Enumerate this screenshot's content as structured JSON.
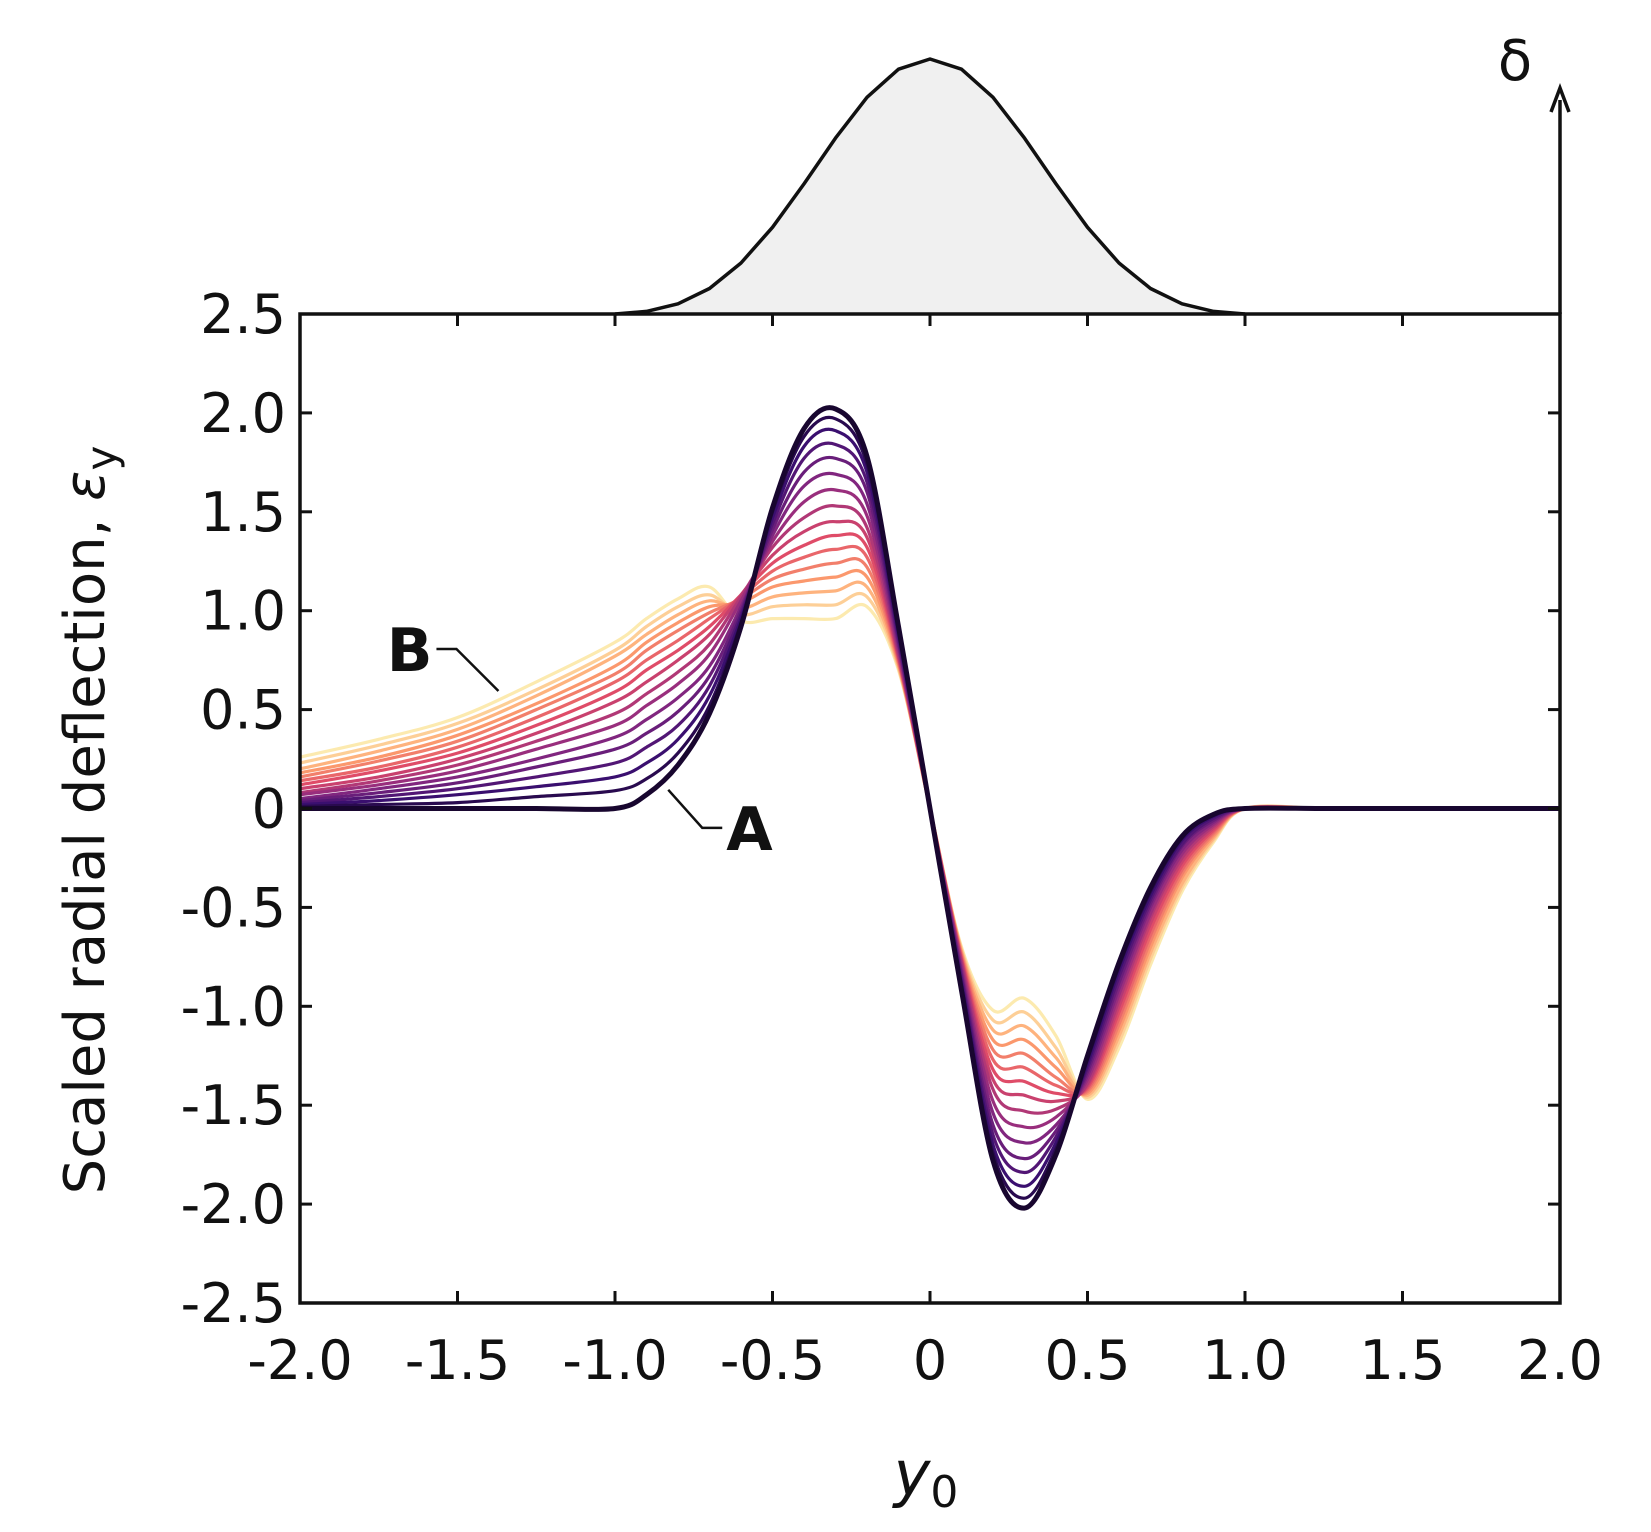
{
  "chart_data": {
    "type": "line",
    "ylabel_text": "Scaled radial deflection, ",
    "ylabel_symbol": "ε",
    "ylabel_sub": "y",
    "xlabel_symbol": "y",
    "xlabel_sub": "0",
    "inset_label": "δ",
    "xlim": [
      -2.0,
      2.0
    ],
    "ylim": [
      -2.5,
      2.5
    ],
    "x_ticks": [
      -2.0,
      -1.5,
      -1.0,
      -0.5,
      0,
      0.5,
      1.0,
      1.5,
      2.0
    ],
    "x_tick_labels": [
      "-2.0",
      "-1.5",
      "-1.0",
      "-0.5",
      "0",
      "0.5",
      "1.0",
      "1.5",
      "2.0"
    ],
    "y_ticks": [
      2.5,
      2.0,
      1.5,
      1.0,
      0.5,
      0,
      -0.5,
      -1.0,
      -1.5,
      -2.0,
      -2.5
    ],
    "y_tick_labels": [
      "2.5",
      "2.0",
      "1.5",
      "1.0",
      "0.5",
      "0",
      "-0.5",
      "-1.0",
      "-1.5",
      "-2.0",
      "-2.5"
    ],
    "annotations": [
      {
        "text": "A",
        "curve": "A",
        "at_x": -0.85
      },
      {
        "text": "B",
        "curve": "B",
        "at_x": -1.37
      }
    ],
    "grid": false,
    "legend": "none",
    "color_scale": [
      "#000004",
      "#3b0f70",
      "#8c2981",
      "#de4968",
      "#fe9f6d",
      "#fcfdbf"
    ],
    "inset_profile": {
      "x": [
        -1.0,
        -0.9,
        -0.8,
        -0.7,
        -0.6,
        -0.5,
        -0.4,
        -0.3,
        -0.2,
        -0.1,
        0.0,
        0.1,
        0.2,
        0.3,
        0.4,
        0.5,
        0.6,
        0.7,
        0.8,
        0.9,
        1.0
      ],
      "y": [
        0.0,
        0.01,
        0.04,
        0.1,
        0.2,
        0.34,
        0.51,
        0.69,
        0.85,
        0.96,
        1.0,
        0.96,
        0.85,
        0.69,
        0.51,
        0.34,
        0.2,
        0.1,
        0.04,
        0.01,
        0.0
      ]
    },
    "x": [
      -2.0,
      -1.75,
      -1.5,
      -1.25,
      -1.0,
      -0.9,
      -0.8,
      -0.7,
      -0.6,
      -0.5,
      -0.4,
      -0.3,
      -0.2,
      -0.1,
      0.0,
      0.1,
      0.2,
      0.3,
      0.4,
      0.5,
      0.6,
      0.7,
      0.8,
      0.9,
      1.0,
      1.25,
      1.5,
      1.75,
      2.0
    ],
    "series": [
      {
        "name": "A",
        "values": [
          0,
          0,
          0,
          0,
          0,
          0.07,
          0.22,
          0.48,
          0.92,
          1.52,
          1.92,
          2.02,
          1.78,
          0.92,
          0,
          -0.92,
          -1.78,
          -2.02,
          -1.75,
          -1.25,
          -0.78,
          -0.4,
          -0.14,
          -0.03,
          0,
          0,
          0,
          0,
          0
        ]
      },
      {
        "values": [
          0.01,
          0.02,
          0.03,
          0.06,
          0.09,
          0.15,
          0.28,
          0.52,
          0.94,
          1.5,
          1.88,
          1.97,
          1.74,
          0.9,
          0,
          -0.9,
          -1.74,
          -1.97,
          -1.72,
          -1.27,
          -0.8,
          -0.42,
          -0.15,
          -0.03,
          0,
          0,
          0,
          0,
          0
        ]
      },
      {
        "values": [
          0.02,
          0.04,
          0.07,
          0.11,
          0.16,
          0.23,
          0.35,
          0.57,
          0.96,
          1.47,
          1.83,
          1.91,
          1.7,
          0.88,
          0,
          -0.88,
          -1.7,
          -1.91,
          -1.69,
          -1.29,
          -0.82,
          -0.44,
          -0.16,
          -0.04,
          0,
          0,
          0,
          0,
          0
        ]
      },
      {
        "values": [
          0.03,
          0.06,
          0.1,
          0.16,
          0.23,
          0.31,
          0.42,
          0.62,
          0.98,
          1.44,
          1.77,
          1.84,
          1.65,
          0.86,
          0,
          -0.86,
          -1.65,
          -1.84,
          -1.66,
          -1.31,
          -0.85,
          -0.46,
          -0.18,
          -0.05,
          0,
          0,
          0,
          0,
          0
        ]
      },
      {
        "values": [
          0.04,
          0.08,
          0.13,
          0.21,
          0.3,
          0.38,
          0.49,
          0.67,
          1.0,
          1.41,
          1.7,
          1.77,
          1.6,
          0.84,
          0,
          -0.84,
          -1.6,
          -1.77,
          -1.63,
          -1.33,
          -0.88,
          -0.48,
          -0.19,
          -0.06,
          0,
          0,
          0,
          0,
          0
        ]
      },
      {
        "values": [
          0.05,
          0.1,
          0.16,
          0.25,
          0.36,
          0.45,
          0.56,
          0.72,
          1.02,
          1.38,
          1.63,
          1.69,
          1.54,
          0.82,
          0,
          -0.82,
          -1.54,
          -1.69,
          -1.6,
          -1.35,
          -0.91,
          -0.5,
          -0.21,
          -0.07,
          0,
          0,
          0,
          0,
          0
        ]
      },
      {
        "values": [
          0.07,
          0.12,
          0.19,
          0.3,
          0.42,
          0.52,
          0.63,
          0.78,
          1.05,
          1.35,
          1.55,
          1.61,
          1.48,
          0.8,
          0,
          -0.8,
          -1.48,
          -1.61,
          -1.56,
          -1.37,
          -0.94,
          -0.53,
          -0.23,
          -0.08,
          0,
          0,
          0,
          0,
          0
        ]
      },
      {
        "values": [
          0.08,
          0.14,
          0.22,
          0.34,
          0.48,
          0.58,
          0.69,
          0.83,
          1.07,
          1.32,
          1.47,
          1.53,
          1.42,
          0.78,
          0,
          -0.78,
          -1.42,
          -1.53,
          -1.52,
          -1.39,
          -0.97,
          -0.55,
          -0.25,
          -0.09,
          0,
          0,
          0,
          0,
          0
        ]
      },
      {
        "values": [
          0.1,
          0.16,
          0.25,
          0.38,
          0.54,
          0.64,
          0.75,
          0.88,
          1.08,
          1.28,
          1.4,
          1.45,
          1.37,
          0.77,
          0,
          -0.77,
          -1.37,
          -1.45,
          -1.48,
          -1.4,
          -1.0,
          -0.58,
          -0.27,
          -0.1,
          0,
          0,
          0,
          0,
          0
        ]
      },
      {
        "values": [
          0.12,
          0.19,
          0.28,
          0.42,
          0.59,
          0.7,
          0.8,
          0.92,
          1.08,
          1.24,
          1.33,
          1.38,
          1.32,
          0.76,
          0,
          -0.76,
          -1.32,
          -1.38,
          -1.44,
          -1.41,
          -1.03,
          -0.61,
          -0.29,
          -0.11,
          0,
          0,
          0,
          0,
          0
        ]
      },
      {
        "values": [
          0.14,
          0.21,
          0.31,
          0.46,
          0.64,
          0.75,
          0.85,
          0.96,
          1.07,
          1.2,
          1.27,
          1.31,
          1.27,
          0.75,
          0,
          -0.75,
          -1.27,
          -1.31,
          -1.4,
          -1.42,
          -1.06,
          -0.64,
          -0.31,
          -0.12,
          0,
          0,
          0,
          0,
          0
        ]
      },
      {
        "values": [
          0.16,
          0.24,
          0.34,
          0.5,
          0.68,
          0.8,
          0.9,
          0.99,
          1.06,
          1.16,
          1.21,
          1.24,
          1.22,
          0.74,
          0,
          -0.74,
          -1.22,
          -1.24,
          -1.36,
          -1.43,
          -1.09,
          -0.67,
          -0.33,
          -0.13,
          0,
          0,
          0,
          0,
          0
        ]
      },
      {
        "values": [
          0.18,
          0.26,
          0.37,
          0.53,
          0.72,
          0.84,
          0.94,
          1.02,
          1.04,
          1.12,
          1.15,
          1.17,
          1.17,
          0.73,
          0,
          -0.73,
          -1.17,
          -1.17,
          -1.31,
          -1.44,
          -1.12,
          -0.7,
          -0.35,
          -0.14,
          0,
          0,
          0,
          0,
          0
        ]
      },
      {
        "values": [
          0.2,
          0.29,
          0.4,
          0.57,
          0.77,
          0.88,
          0.98,
          1.05,
          1.01,
          1.07,
          1.09,
          1.1,
          1.12,
          0.72,
          0,
          -0.72,
          -1.12,
          -1.1,
          -1.26,
          -1.45,
          -1.15,
          -0.73,
          -0.38,
          -0.15,
          0,
          0,
          0,
          0,
          0
        ]
      },
      {
        "values": [
          0.23,
          0.32,
          0.43,
          0.6,
          0.8,
          0.92,
          1.02,
          1.08,
          0.98,
          1.02,
          1.03,
          1.03,
          1.07,
          0.71,
          0,
          -0.71,
          -1.07,
          -1.03,
          -1.21,
          -1.46,
          -1.18,
          -0.76,
          -0.4,
          -0.16,
          0,
          0,
          0,
          0,
          0
        ]
      },
      {
        "name": "B",
        "values": [
          0.26,
          0.35,
          0.46,
          0.64,
          0.84,
          0.96,
          1.06,
          1.12,
          0.95,
          0.96,
          0.96,
          0.96,
          1.02,
          0.7,
          0,
          -0.7,
          -1.02,
          -0.96,
          -1.15,
          -1.47,
          -1.21,
          -0.79,
          -0.42,
          -0.17,
          0,
          0,
          0,
          0,
          0
        ]
      }
    ]
  }
}
